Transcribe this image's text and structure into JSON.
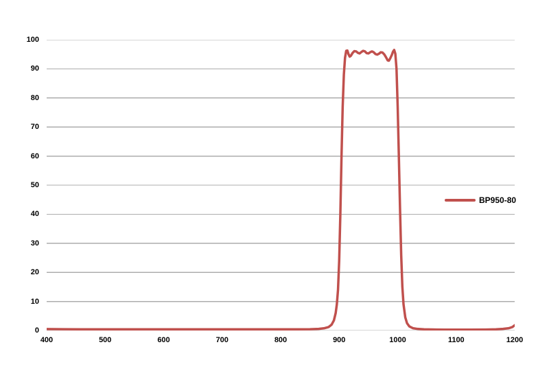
{
  "chart_data": {
    "type": "line",
    "title": "",
    "xlabel": "",
    "ylabel": "",
    "xlim": [
      400,
      1200
    ],
    "ylim": [
      0,
      100
    ],
    "x_ticks": [
      400,
      500,
      600,
      700,
      800,
      900,
      1000,
      1100,
      1200
    ],
    "y_ticks": [
      0,
      10,
      20,
      30,
      40,
      50,
      60,
      70,
      80,
      90,
      100
    ],
    "grid": "horizontal-only",
    "colors": {
      "gridline": "#ACACAC",
      "background": "#FFFFFF",
      "tick_label": "#000000"
    },
    "legend": {
      "position": "middle-right-inside",
      "entries": [
        {
          "label": "BP950-80",
          "color": "#C0504D"
        }
      ]
    },
    "series": [
      {
        "name": "BP950-80",
        "color": "#C0504D",
        "stroke_width": 3.5,
        "points": [
          [
            400,
            0.5
          ],
          [
            430,
            0.45
          ],
          [
            460,
            0.4
          ],
          [
            500,
            0.4
          ],
          [
            540,
            0.4
          ],
          [
            580,
            0.4
          ],
          [
            620,
            0.4
          ],
          [
            660,
            0.4
          ],
          [
            700,
            0.4
          ],
          [
            740,
            0.4
          ],
          [
            780,
            0.4
          ],
          [
            820,
            0.4
          ],
          [
            850,
            0.45
          ],
          [
            865,
            0.55
          ],
          [
            875,
            0.8
          ],
          [
            882,
            1.2
          ],
          [
            887,
            2.0
          ],
          [
            891,
            3.5
          ],
          [
            894,
            6
          ],
          [
            896,
            9
          ],
          [
            898,
            14
          ],
          [
            900,
            24
          ],
          [
            902,
            40
          ],
          [
            904,
            60
          ],
          [
            906,
            77
          ],
          [
            908,
            88
          ],
          [
            910,
            93.8
          ],
          [
            912,
            96.2
          ],
          [
            914,
            96.3
          ],
          [
            916,
            95.0
          ],
          [
            918,
            94.2
          ],
          [
            920,
            94.5
          ],
          [
            923,
            95.5
          ],
          [
            926,
            96.1
          ],
          [
            929,
            96.0
          ],
          [
            932,
            95.5
          ],
          [
            935,
            95.3
          ],
          [
            938,
            95.8
          ],
          [
            941,
            96.2
          ],
          [
            944,
            96.0
          ],
          [
            947,
            95.4
          ],
          [
            950,
            95.3
          ],
          [
            953,
            95.7
          ],
          [
            956,
            96.0
          ],
          [
            959,
            95.7
          ],
          [
            962,
            95.1
          ],
          [
            965,
            94.9
          ],
          [
            968,
            95.2
          ],
          [
            971,
            95.7
          ],
          [
            974,
            95.6
          ],
          [
            977,
            95.0
          ],
          [
            980,
            94.0
          ],
          [
            983,
            92.9
          ],
          [
            985,
            92.8
          ],
          [
            987,
            93.5
          ],
          [
            990,
            94.8
          ],
          [
            992,
            95.9
          ],
          [
            994,
            96.5
          ],
          [
            996,
            95.2
          ],
          [
            998,
            90
          ],
          [
            1000,
            77
          ],
          [
            1002,
            60
          ],
          [
            1004,
            42
          ],
          [
            1006,
            26
          ],
          [
            1008,
            15
          ],
          [
            1010,
            9
          ],
          [
            1013,
            4.5
          ],
          [
            1016,
            2.5
          ],
          [
            1020,
            1.4
          ],
          [
            1026,
            0.8
          ],
          [
            1034,
            0.55
          ],
          [
            1045,
            0.4
          ],
          [
            1060,
            0.35
          ],
          [
            1080,
            0.3
          ],
          [
            1100,
            0.3
          ],
          [
            1125,
            0.3
          ],
          [
            1150,
            0.32
          ],
          [
            1168,
            0.4
          ],
          [
            1180,
            0.55
          ],
          [
            1190,
            0.8
          ],
          [
            1196,
            1.2
          ],
          [
            1200,
            1.8
          ]
        ]
      }
    ]
  }
}
